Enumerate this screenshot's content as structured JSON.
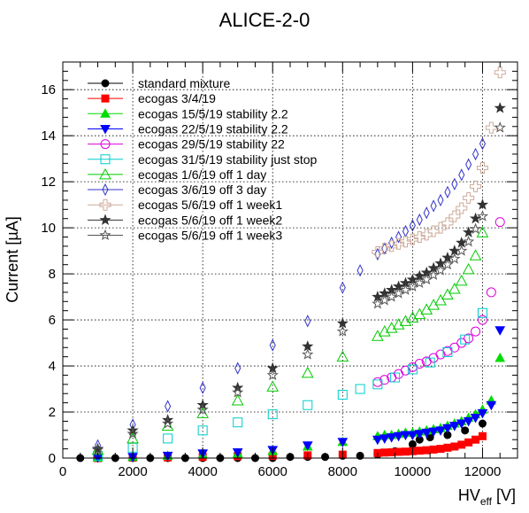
{
  "chart_data": {
    "type": "scatter",
    "title": "ALICE-2-0",
    "xlabel_main": "HV",
    "xlabel_sub": "eff",
    "xlabel_unit": "[V]",
    "ylabel": "Current [µA]",
    "xlim": [
      0,
      13000
    ],
    "ylim": [
      0,
      17.2
    ],
    "x_ticks": [
      0,
      2000,
      4000,
      6000,
      8000,
      10000,
      12000
    ],
    "y_ticks": [
      0,
      2,
      4,
      6,
      8,
      10,
      12,
      14,
      16
    ],
    "grid": true,
    "legend_position": "top-left",
    "series": [
      {
        "name": "standard mixture",
        "color": "#000000",
        "marker": "circle-filled",
        "x": [
          500,
          1000,
          1500,
          2000,
          2500,
          3000,
          3500,
          4000,
          4500,
          5000,
          5500,
          6000,
          6500,
          7000,
          7500,
          8000,
          8500,
          9000,
          9500,
          10000,
          10200,
          10500,
          11000,
          11500,
          12000
        ],
        "y": [
          0,
          0,
          0,
          0,
          0,
          0,
          0,
          0,
          0,
          0,
          0,
          0,
          0.05,
          0.05,
          0.05,
          0.1,
          0.1,
          0.15,
          0.3,
          0.6,
          0.8,
          0.9,
          1.0,
          1.2,
          1.5
        ]
      },
      {
        "name": "ecogas 3/4/19",
        "color": "#ff0000",
        "marker": "square-filled",
        "x": [
          1000,
          2000,
          3000,
          4000,
          5000,
          6000,
          7000,
          8000,
          9000,
          9200,
          9400,
          9600,
          9800,
          10000,
          10200,
          10400,
          10600,
          10800,
          11000,
          11200,
          11400,
          11600,
          11800,
          12000
        ],
        "y": [
          0,
          0.02,
          0.03,
          0.05,
          0.08,
          0.1,
          0.12,
          0.15,
          0.22,
          0.24,
          0.25,
          0.27,
          0.28,
          0.3,
          0.32,
          0.34,
          0.37,
          0.4,
          0.45,
          0.5,
          0.58,
          0.68,
          0.8,
          0.95
        ]
      },
      {
        "name": "ecogas 15/5/19 stability 2.2",
        "color": "#00dd00",
        "marker": "triangle-up-filled",
        "x": [
          1000,
          2000,
          3000,
          4000,
          5000,
          6000,
          7000,
          8000,
          9000,
          9200,
          9400,
          9600,
          9800,
          10000,
          10200,
          10400,
          10600,
          10800,
          11000,
          11200,
          11400,
          11600,
          11800,
          12000,
          12250,
          12500
        ],
        "y": [
          0.02,
          0.05,
          0.1,
          0.15,
          0.2,
          0.3,
          0.5,
          0.7,
          0.95,
          1.0,
          1.0,
          1.05,
          1.1,
          1.1,
          1.15,
          1.2,
          1.25,
          1.3,
          1.4,
          1.5,
          1.6,
          1.75,
          1.9,
          2.1,
          2.5,
          4.35
        ]
      },
      {
        "name": "ecogas 22/5/19 stability 2.2",
        "color": "#0000ff",
        "marker": "triangle-down-filled",
        "x": [
          1000,
          2000,
          3000,
          4000,
          5000,
          6000,
          7000,
          8000,
          9000,
          9200,
          9400,
          9600,
          9800,
          10000,
          10200,
          10400,
          10600,
          10800,
          11000,
          11200,
          11400,
          11600,
          11800,
          12000,
          12250,
          12500
        ],
        "y": [
          0.02,
          0.05,
          0.1,
          0.2,
          0.25,
          0.35,
          0.55,
          0.7,
          0.8,
          0.85,
          0.9,
          0.95,
          1.0,
          1.0,
          1.05,
          1.1,
          1.15,
          1.2,
          1.3,
          1.4,
          1.5,
          1.6,
          1.75,
          1.95,
          2.3,
          5.55
        ]
      },
      {
        "name": "ecogas 29/5/19 stability 22",
        "color": "#dd00dd",
        "marker": "circle-open",
        "x": [
          9000,
          9200,
          9400,
          9600,
          9800,
          10000,
          10200,
          10400,
          10600,
          10800,
          11000,
          11200,
          11400,
          11600,
          11800,
          12000,
          12250,
          12500
        ],
        "y": [
          3.3,
          3.4,
          3.5,
          3.65,
          3.8,
          3.95,
          4.1,
          4.2,
          4.35,
          4.5,
          4.65,
          4.8,
          5.0,
          5.2,
          5.5,
          6.0,
          7.2,
          10.25
        ]
      },
      {
        "name": "ecogas 31/5/19 stability just stop",
        "color": "#00cccc",
        "marker": "square-open",
        "x": [
          1000,
          2000,
          3000,
          4000,
          5000,
          6000,
          7000,
          8000,
          8500,
          9000,
          9500,
          10000,
          10500,
          11000,
          11500,
          12000
        ],
        "y": [
          0.1,
          0.45,
          0.85,
          1.2,
          1.55,
          1.9,
          2.3,
          2.75,
          3.0,
          3.2,
          3.5,
          3.85,
          4.15,
          4.6,
          5.15,
          6.3
        ]
      },
      {
        "name": "ecogas 1/6/19 off 1 day",
        "color": "#00cc00",
        "marker": "triangle-up-open",
        "x": [
          1000,
          2000,
          3000,
          4000,
          5000,
          6000,
          7000,
          8000,
          9000,
          9200,
          9400,
          9600,
          9800,
          10000,
          10200,
          10400,
          10600,
          10800,
          11000,
          11200,
          11400,
          11600,
          11800,
          12000
        ],
        "y": [
          0.35,
          0.85,
          1.4,
          1.95,
          2.5,
          3.1,
          3.7,
          4.4,
          5.3,
          5.5,
          5.65,
          5.8,
          5.95,
          6.1,
          6.25,
          6.45,
          6.65,
          6.85,
          7.1,
          7.35,
          7.7,
          8.2,
          8.8,
          9.8
        ]
      },
      {
        "name": "ecogas 3/6/19 off 3 day",
        "color": "#3333cc",
        "marker": "diamond-open",
        "x": [
          1000,
          2000,
          3000,
          4000,
          5000,
          6000,
          7000,
          8000,
          8500,
          9000,
          9200,
          9400,
          9600,
          9800,
          10000,
          10200,
          10400,
          10600,
          10800,
          11000,
          11200,
          11400,
          11600,
          11800,
          12000
        ],
        "y": [
          0.55,
          1.45,
          2.25,
          3.05,
          3.9,
          4.9,
          5.95,
          7.4,
          8.15,
          8.85,
          9.1,
          9.35,
          9.6,
          9.85,
          10.1,
          10.35,
          10.65,
          10.95,
          11.2,
          11.55,
          11.9,
          12.3,
          12.75,
          13.2,
          13.65
        ]
      },
      {
        "name": "ecogas 5/6/19 off 1 week1",
        "color": "#ccaa99",
        "marker": "cross-open",
        "x": [
          9000,
          9200,
          9400,
          9600,
          9800,
          10000,
          10200,
          10400,
          10600,
          10800,
          11000,
          11200,
          11400,
          11600,
          11800,
          12000,
          12250,
          12500
        ],
        "y": [
          8.95,
          9.1,
          9.2,
          9.3,
          9.4,
          9.5,
          9.6,
          9.7,
          9.85,
          10.0,
          10.2,
          10.5,
          10.85,
          11.3,
          11.8,
          12.6,
          14.35,
          16.75
        ]
      },
      {
        "name": "ecogas 5/6/19 off 1 week2",
        "color": "#333333",
        "marker": "star-filled",
        "x": [
          1000,
          2000,
          3000,
          4000,
          5000,
          6000,
          7000,
          8000,
          9000,
          9200,
          9400,
          9600,
          9800,
          10000,
          10200,
          10400,
          10600,
          10800,
          11000,
          11200,
          11400,
          11600,
          11800,
          12000,
          12500
        ],
        "y": [
          0.4,
          1.2,
          1.65,
          2.3,
          3.05,
          3.9,
          4.85,
          5.85,
          7.0,
          7.15,
          7.3,
          7.45,
          7.6,
          7.75,
          7.9,
          8.05,
          8.25,
          8.45,
          8.7,
          9.0,
          9.35,
          9.8,
          10.4,
          11.0,
          15.2
        ]
      },
      {
        "name": "ecogas 5/6/19 off 1 week3",
        "color": "#555555",
        "marker": "star-open",
        "x": [
          1000,
          2000,
          3000,
          4000,
          5000,
          6000,
          7000,
          8000,
          9000,
          9200,
          9400,
          9600,
          9800,
          10000,
          10200,
          10400,
          10600,
          10800,
          11000,
          11200,
          11400,
          11600,
          11800,
          12000,
          12500
        ],
        "y": [
          0.35,
          1.05,
          1.5,
          2.1,
          2.85,
          3.6,
          4.5,
          5.5,
          6.7,
          6.85,
          7.0,
          7.15,
          7.3,
          7.45,
          7.6,
          7.75,
          7.95,
          8.15,
          8.4,
          8.65,
          9.0,
          9.4,
          9.95,
          10.5,
          14.35
        ]
      }
    ]
  }
}
